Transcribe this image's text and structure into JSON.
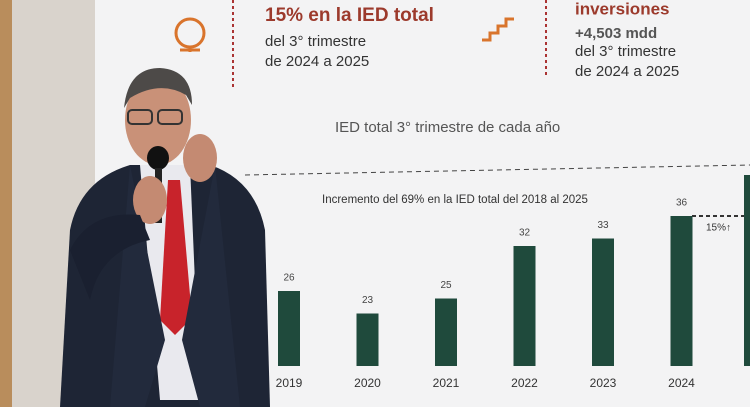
{
  "panels": {
    "left": {
      "headline": "15% en la IED total",
      "lines": [
        "del 3° trimestre",
        "de 2024 a 2025"
      ]
    },
    "right": {
      "headline": "inversiones",
      "amount": "+4,503 mdd",
      "lines": [
        "del 3° trimestre",
        "de 2024 a 2025"
      ]
    }
  },
  "chart_data": {
    "type": "bar",
    "title": "IED total 3° trimestre de cada año",
    "annotation": "Incremento del 69% en la IED total del 2018 al 2025",
    "annotation2": "15%↑",
    "categories": [
      "2019",
      "2020",
      "2021",
      "2022",
      "2023",
      "2024"
    ],
    "values": [
      26,
      23,
      25,
      32,
      33,
      36
    ],
    "color": "#1f4a3c",
    "ylim": [
      16,
      42
    ]
  }
}
